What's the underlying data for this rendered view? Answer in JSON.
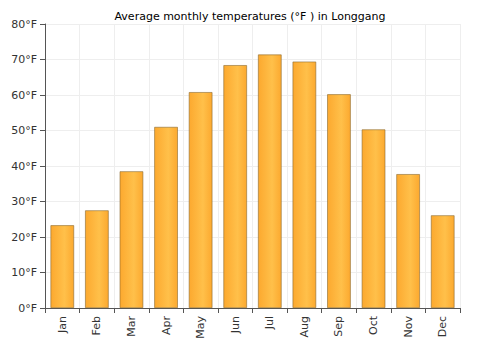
{
  "chart_data": {
    "type": "bar",
    "title": "Average monthly temperatures (°F ) in Longgang",
    "categories": [
      "Jan",
      "Feb",
      "Mar",
      "Apr",
      "May",
      "Jun",
      "Jul",
      "Aug",
      "Sep",
      "Oct",
      "Nov",
      "Dec"
    ],
    "values": [
      23.3,
      27.5,
      38.5,
      51.0,
      60.8,
      68.4,
      71.4,
      69.4,
      60.2,
      50.3,
      37.7,
      26.1
    ],
    "color": "#fca92f",
    "ylim": [
      0,
      80
    ],
    "yticks": [
      {
        "value": 0,
        "label": "0°F"
      },
      {
        "value": 10,
        "label": "10°F"
      },
      {
        "value": 20,
        "label": "20°F"
      },
      {
        "value": 30,
        "label": "30°F"
      },
      {
        "value": 40,
        "label": "40°F"
      },
      {
        "value": 50,
        "label": "50°F"
      },
      {
        "value": 60,
        "label": "60°F"
      },
      {
        "value": 70,
        "label": "70°F"
      },
      {
        "value": 80,
        "label": "80°F"
      }
    ],
    "grid": true
  }
}
